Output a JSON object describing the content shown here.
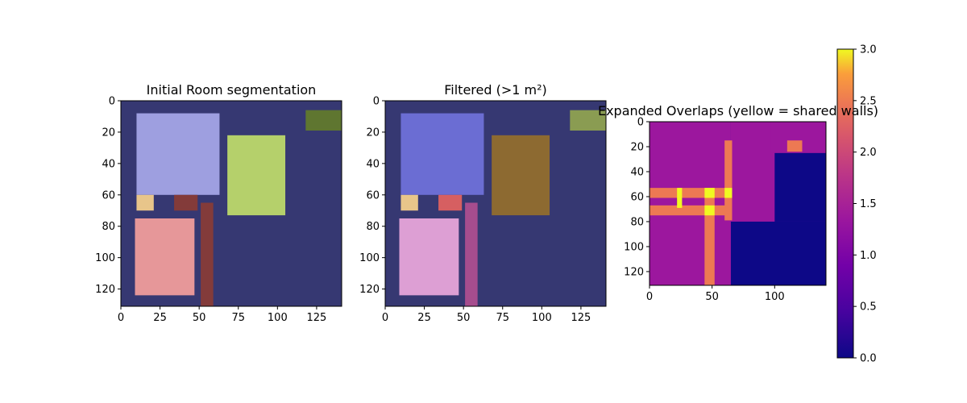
{
  "chart_data": [
    {
      "type": "heatmap",
      "title": "Initial Room segmentation",
      "xlabel": "",
      "ylabel": "",
      "xlim": [
        0,
        141
      ],
      "ylim": [
        131,
        0
      ],
      "x_ticks": [
        "0",
        "25",
        "50",
        "75",
        "100",
        "125"
      ],
      "y_ticks": [
        "0",
        "20",
        "40",
        "60",
        "80",
        "100",
        "120"
      ],
      "background_color": "#363872",
      "rooms": [
        {
          "color": "#9E9FE0",
          "x": [
            10,
            63
          ],
          "y": [
            8,
            60
          ]
        },
        {
          "color": "#B5D06B",
          "x": [
            68,
            105
          ],
          "y": [
            22,
            73
          ]
        },
        {
          "color": "#5F7630",
          "x": [
            118,
            141
          ],
          "y": [
            6,
            19
          ]
        },
        {
          "color": "#E8C58A",
          "x": [
            10,
            21
          ],
          "y": [
            60,
            70
          ]
        },
        {
          "color": "#833B3A",
          "x": [
            34,
            49
          ],
          "y": [
            60,
            70
          ]
        },
        {
          "color": "#E69799",
          "x": [
            9,
            47
          ],
          "y": [
            75,
            124
          ]
        },
        {
          "color": "#833B3A",
          "x": [
            51,
            59
          ],
          "y": [
            65,
            131
          ]
        }
      ]
    },
    {
      "type": "heatmap",
      "title": "Filtered (>1 m²)",
      "xlabel": "",
      "ylabel": "",
      "xlim": [
        0,
        141
      ],
      "ylim": [
        131,
        0
      ],
      "x_ticks": [
        "0",
        "25",
        "50",
        "75",
        "100",
        "125"
      ],
      "y_ticks": [
        "0",
        "20",
        "40",
        "60",
        "80",
        "100",
        "120"
      ],
      "background_color": "#363872",
      "rooms": [
        {
          "color": "#6B6DD3",
          "x": [
            10,
            63
          ],
          "y": [
            8,
            60
          ]
        },
        {
          "color": "#8D6A31",
          "x": [
            68,
            105
          ],
          "y": [
            22,
            73
          ]
        },
        {
          "color": "#8A9C52",
          "x": [
            118,
            141
          ],
          "y": [
            6,
            19
          ]
        },
        {
          "color": "#E8C58A",
          "x": [
            10,
            21
          ],
          "y": [
            60,
            70
          ]
        },
        {
          "color": "#D65F61",
          "x": [
            34,
            49
          ],
          "y": [
            60,
            70
          ]
        },
        {
          "color": "#DD9FD4",
          "x": [
            9,
            47
          ],
          "y": [
            75,
            124
          ]
        },
        {
          "color": "#A64D8E",
          "x": [
            51,
            59
          ],
          "y": [
            65,
            131
          ]
        }
      ]
    },
    {
      "type": "heatmap",
      "title": "Expanded Overlaps (yellow = shared walls)",
      "xlabel": "",
      "ylabel": "",
      "xlim": [
        0,
        141
      ],
      "ylim": [
        131,
        0
      ],
      "x_ticks": [
        "0",
        "50",
        "100"
      ],
      "y_ticks": [
        "0",
        "20",
        "40",
        "60",
        "80",
        "100",
        "120"
      ],
      "colormap": "plasma",
      "colorbar": {
        "range": [
          0,
          3
        ],
        "ticks": [
          "0.0",
          "0.5",
          "1.0",
          "1.5",
          "2.0",
          "2.5",
          "3.0"
        ]
      },
      "values_legend": {
        "0": "#0D0887",
        "1": "#9C179E",
        "2": "#ED7953",
        "3": "#F0F921"
      },
      "regions": [
        {
          "value": 0,
          "x": [
            0,
            141
          ],
          "y": [
            0,
            131
          ]
        },
        {
          "value": 1,
          "x": [
            0,
            65
          ],
          "y": [
            0,
            131
          ]
        },
        {
          "value": 1,
          "x": [
            65,
            141
          ],
          "y": [
            0,
            80
          ]
        },
        {
          "value": 0,
          "x": [
            100,
            141
          ],
          "y": [
            25,
            80
          ]
        },
        {
          "value": 1,
          "x": [
            97,
            141
          ],
          "y": [
            0,
            25
          ]
        },
        {
          "value": 2,
          "x": [
            0,
            65
          ],
          "y": [
            53,
            61
          ]
        },
        {
          "value": 2,
          "x": [
            0,
            65
          ],
          "y": [
            67,
            75
          ]
        },
        {
          "value": 2,
          "x": [
            44,
            52
          ],
          "y": [
            53,
            131
          ]
        },
        {
          "value": 2,
          "x": [
            60,
            66
          ],
          "y": [
            15,
            79
          ]
        },
        {
          "value": 2,
          "x": [
            110,
            122
          ],
          "y": [
            15,
            24
          ]
        },
        {
          "value": 3,
          "x": [
            44,
            52
          ],
          "y": [
            53,
            61
          ]
        },
        {
          "value": 3,
          "x": [
            44,
            52
          ],
          "y": [
            67,
            75
          ]
        },
        {
          "value": 3,
          "x": [
            60,
            66
          ],
          "y": [
            53,
            61
          ]
        },
        {
          "value": 3,
          "x": [
            22,
            26
          ],
          "y": [
            53,
            69
          ]
        }
      ]
    }
  ]
}
